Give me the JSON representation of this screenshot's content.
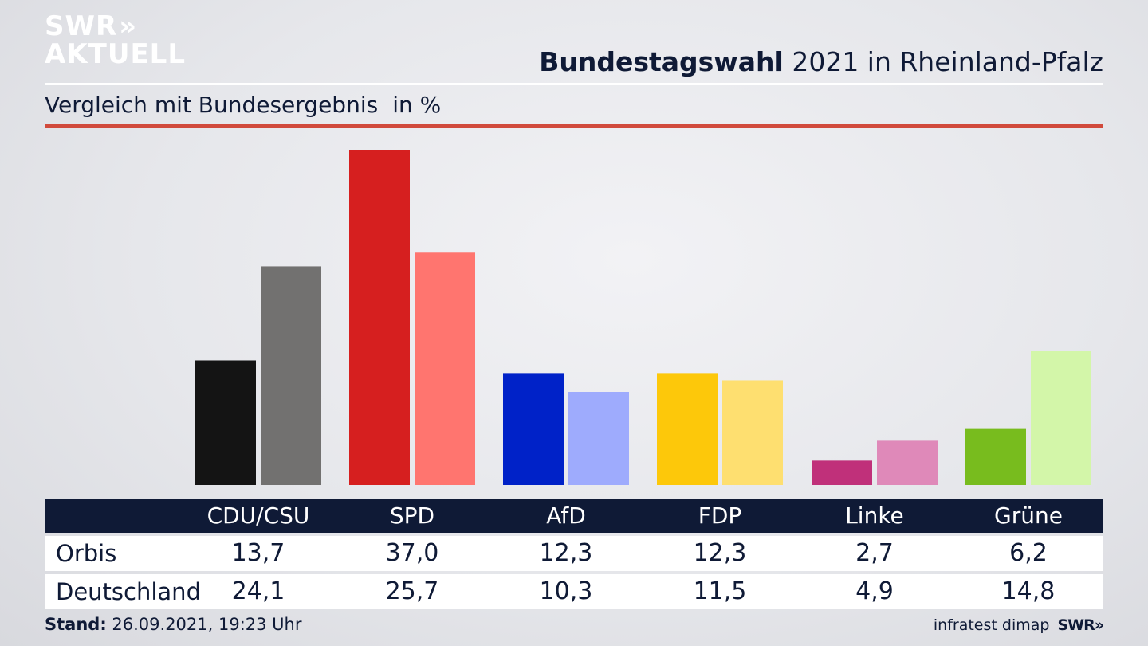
{
  "logo": {
    "line1": "SWR",
    "arrows": "»",
    "line2": "AKTUELL"
  },
  "header": {
    "title_bold": "Bundestagswahl",
    "title_rest": " 2021 in Rheinland-Pfalz",
    "subtitle": "Vergleich mit Bundesergebnis",
    "unit": "in %"
  },
  "chart_data": {
    "type": "bar",
    "categories": [
      "CDU/CSU",
      "SPD",
      "AfD",
      "FDP",
      "Linke",
      "Grüne"
    ],
    "series": [
      {
        "name": "Orbis",
        "values": [
          13.7,
          37.0,
          12.3,
          12.3,
          2.7,
          6.2
        ],
        "colors": [
          "#141414",
          "#d61f1f",
          "#0022c8",
          "#fdc80a",
          "#c0307a",
          "#78bc1e"
        ]
      },
      {
        "name": "Deutschland",
        "values": [
          24.1,
          25.7,
          10.3,
          11.5,
          4.9,
          14.8
        ],
        "colors": [
          "#727170",
          "#ff756f",
          "#9eabfd",
          "#fedf70",
          "#df89b9",
          "#d3f6a9"
        ]
      }
    ],
    "display_values": {
      "Orbis": [
        "13,7",
        "37,0",
        "12,3",
        "12,3",
        "2,7",
        "6,2"
      ],
      "Deutschland": [
        "24,1",
        "25,7",
        "10,3",
        "11,5",
        "4,9",
        "14,8"
      ]
    },
    "ylim": [
      0,
      37.0
    ],
    "grid": false,
    "legend": "table below chart"
  },
  "footer": {
    "stand_label": "Stand:",
    "stand_value": " 26.09.2021, 19:23 Uhr",
    "source": "infratest dimap",
    "brand": "SWR",
    "brand_arrows": "»"
  },
  "colors": {
    "navy": "#0f1a36",
    "accent_red": "#d14a3c"
  }
}
